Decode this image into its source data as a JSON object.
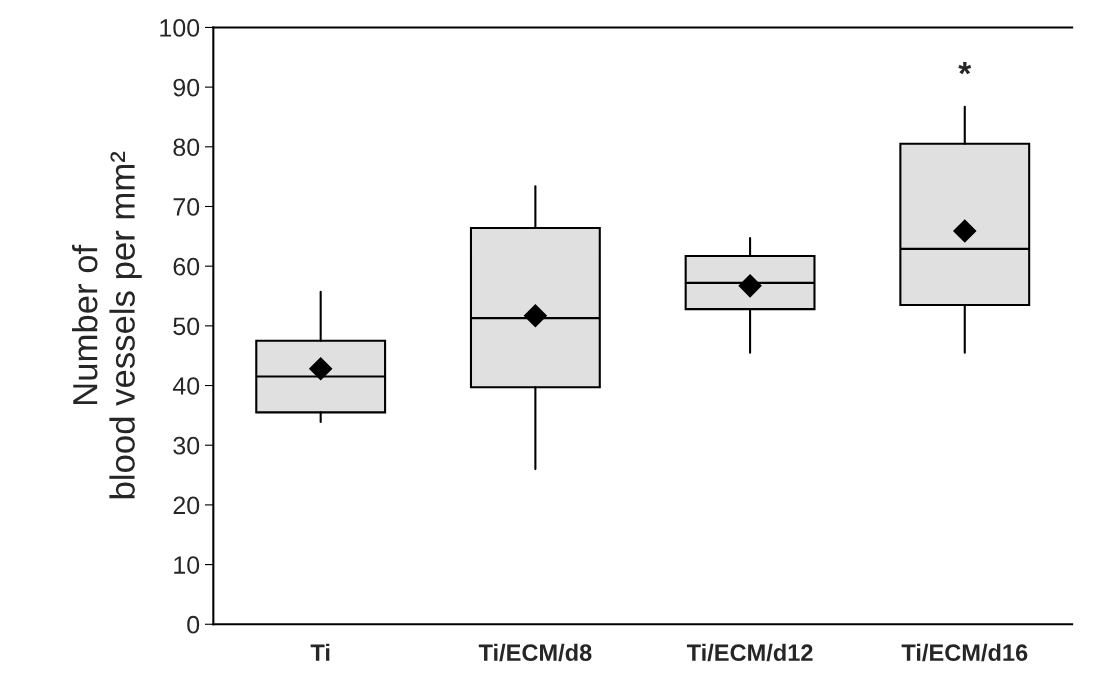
{
  "chart_data": {
    "type": "box",
    "ylabel": "Number of\nblood vessels per mm²",
    "categories": [
      "Ti",
      "Ti/ECM/d8",
      "Ti/ECM/d12",
      "Ti/ECM/d16"
    ],
    "boxes": [
      {
        "low": 33.9,
        "q1": 35.5,
        "median": 41.5,
        "q3": 47.5,
        "high": 55.7,
        "mean": 42.8
      },
      {
        "low": 26,
        "q1": 39.7,
        "median": 51.3,
        "q3": 66.4,
        "high": 73.4,
        "mean": 51.7
      },
      {
        "low": 45.5,
        "q1": 52.8,
        "median": 57.2,
        "q3": 61.7,
        "high": 64.7,
        "mean": 56.7
      },
      {
        "low": 45.5,
        "q1": 53.5,
        "median": 62.9,
        "q3": 80.5,
        "high": 86.7,
        "mean": 65.9
      }
    ],
    "color": "#e0e0e0",
    "marker": "diamond",
    "ylim": [
      0,
      100
    ],
    "yticks": [
      0,
      10,
      20,
      30,
      40,
      50,
      60,
      70,
      80,
      90,
      100
    ],
    "annotations": [
      "*"
    ],
    "grid": false
  }
}
